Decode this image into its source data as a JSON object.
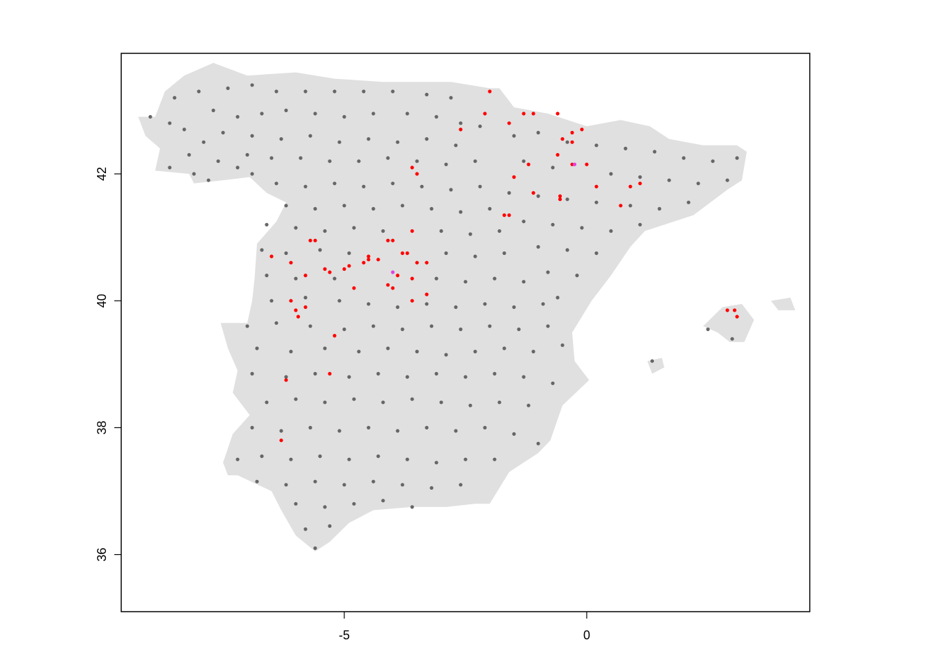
{
  "map": {
    "region": "Spain",
    "background_color": "#e0e0e0",
    "frame": "box",
    "x_axis": {
      "range": [
        -9.6,
        4.6
      ],
      "ticks": [
        {
          "value": -5,
          "label": "-5"
        },
        {
          "value": 0,
          "label": "0"
        }
      ]
    },
    "y_axis": {
      "range": [
        35.1,
        43.9
      ],
      "ticks": [
        {
          "value": 36,
          "label": "36"
        },
        {
          "value": 38,
          "label": "38"
        },
        {
          "value": 40,
          "label": "40"
        },
        {
          "value": 42,
          "label": "42"
        }
      ]
    },
    "colors": {
      "grey": "#666666",
      "red": "#ff0000",
      "violet": "#e040e0"
    },
    "land_outline": [
      [
        -8.9,
        42.9
      ],
      [
        -8.7,
        43.3
      ],
      [
        -8.3,
        43.55
      ],
      [
        -7.7,
        43.75
      ],
      [
        -7.0,
        43.55
      ],
      [
        -6.0,
        43.6
      ],
      [
        -5.2,
        43.5
      ],
      [
        -4.2,
        43.45
      ],
      [
        -3.5,
        43.45
      ],
      [
        -2.8,
        43.45
      ],
      [
        -2.0,
        43.35
      ],
      [
        -1.8,
        43.35
      ],
      [
        -1.5,
        43.05
      ],
      [
        -0.8,
        42.95
      ],
      [
        0.0,
        42.75
      ],
      [
        0.7,
        42.85
      ],
      [
        1.3,
        42.75
      ],
      [
        1.7,
        42.55
      ],
      [
        2.4,
        42.45
      ],
      [
        3.1,
        42.45
      ],
      [
        3.3,
        42.35
      ],
      [
        3.2,
        41.9
      ],
      [
        2.9,
        41.75
      ],
      [
        2.2,
        41.35
      ],
      [
        1.2,
        41.1
      ],
      [
        0.9,
        40.85
      ],
      [
        0.5,
        40.4
      ],
      [
        0.1,
        40.0
      ],
      [
        -0.3,
        39.5
      ],
      [
        -0.25,
        39.05
      ],
      [
        0.05,
        38.75
      ],
      [
        -0.5,
        38.35
      ],
      [
        -0.75,
        37.8
      ],
      [
        -1.0,
        37.6
      ],
      [
        -1.6,
        37.3
      ],
      [
        -2.0,
        36.8
      ],
      [
        -2.3,
        36.8
      ],
      [
        -2.9,
        36.75
      ],
      [
        -3.6,
        36.75
      ],
      [
        -4.4,
        36.7
      ],
      [
        -4.9,
        36.5
      ],
      [
        -5.3,
        36.2
      ],
      [
        -5.6,
        36.05
      ],
      [
        -6.0,
        36.3
      ],
      [
        -6.3,
        36.7
      ],
      [
        -6.5,
        37.0
      ],
      [
        -7.2,
        37.25
      ],
      [
        -7.4,
        37.25
      ],
      [
        -7.5,
        37.45
      ],
      [
        -7.3,
        37.9
      ],
      [
        -6.95,
        38.2
      ],
      [
        -7.3,
        38.55
      ],
      [
        -7.2,
        38.9
      ],
      [
        -7.4,
        39.25
      ],
      [
        -7.55,
        39.65
      ],
      [
        -7.0,
        39.65
      ],
      [
        -6.9,
        40.0
      ],
      [
        -6.85,
        40.35
      ],
      [
        -6.8,
        40.9
      ],
      [
        -6.4,
        41.25
      ],
      [
        -6.2,
        41.55
      ],
      [
        -6.6,
        41.7
      ],
      [
        -6.95,
        41.95
      ],
      [
        -7.5,
        41.9
      ],
      [
        -8.1,
        41.85
      ],
      [
        -8.2,
        42.0
      ],
      [
        -8.9,
        42.05
      ],
      [
        -8.8,
        42.4
      ],
      [
        -9.1,
        42.6
      ],
      [
        -9.25,
        42.9
      ]
    ],
    "islands": [
      [
        [
          2.4,
          39.6
        ],
        [
          2.8,
          39.9
        ],
        [
          3.2,
          39.95
        ],
        [
          3.45,
          39.7
        ],
        [
          3.25,
          39.35
        ],
        [
          2.95,
          39.35
        ],
        [
          2.7,
          39.5
        ]
      ],
      [
        [
          3.8,
          40.0
        ],
        [
          4.2,
          40.05
        ],
        [
          4.3,
          39.85
        ],
        [
          3.95,
          39.85
        ]
      ],
      [
        [
          1.25,
          39.05
        ],
        [
          1.55,
          39.1
        ],
        [
          1.6,
          38.95
        ],
        [
          1.35,
          38.85
        ]
      ]
    ],
    "grey_points": [
      [
        -9.0,
        42.9
      ],
      [
        -8.6,
        42.8
      ],
      [
        -8.3,
        42.7
      ],
      [
        -7.9,
        42.5
      ],
      [
        -8.2,
        42.3
      ],
      [
        -7.6,
        42.2
      ],
      [
        -7.2,
        42.1
      ],
      [
        -6.9,
        42.0
      ],
      [
        -8.6,
        42.1
      ],
      [
        -8.1,
        42.0
      ],
      [
        -7.8,
        41.9
      ],
      [
        -8.5,
        43.2
      ],
      [
        -8.0,
        43.3
      ],
      [
        -7.4,
        43.35
      ],
      [
        -6.9,
        43.4
      ],
      [
        -6.4,
        43.3
      ],
      [
        -5.8,
        43.3
      ],
      [
        -5.2,
        43.3
      ],
      [
        -4.6,
        43.3
      ],
      [
        -4.0,
        43.3
      ],
      [
        -3.3,
        43.25
      ],
      [
        -2.8,
        43.2
      ],
      [
        -7.7,
        43.0
      ],
      [
        -7.2,
        42.9
      ],
      [
        -6.7,
        42.95
      ],
      [
        -6.2,
        43.0
      ],
      [
        -5.6,
        42.95
      ],
      [
        -5.0,
        42.9
      ],
      [
        -4.4,
        42.95
      ],
      [
        -3.7,
        42.95
      ],
      [
        -3.1,
        42.9
      ],
      [
        -2.6,
        42.8
      ],
      [
        -2.2,
        42.75
      ],
      [
        -7.5,
        42.65
      ],
      [
        -6.9,
        42.6
      ],
      [
        -6.3,
        42.55
      ],
      [
        -5.7,
        42.6
      ],
      [
        -5.1,
        42.5
      ],
      [
        -4.5,
        42.55
      ],
      [
        -3.9,
        42.5
      ],
      [
        -3.3,
        42.55
      ],
      [
        -2.7,
        42.45
      ],
      [
        -7.0,
        42.3
      ],
      [
        -6.5,
        42.25
      ],
      [
        -5.9,
        42.25
      ],
      [
        -5.3,
        42.2
      ],
      [
        -4.7,
        42.2
      ],
      [
        -4.1,
        42.25
      ],
      [
        -3.5,
        42.2
      ],
      [
        -2.9,
        42.15
      ],
      [
        -2.3,
        42.2
      ],
      [
        -6.4,
        41.85
      ],
      [
        -5.8,
        41.8
      ],
      [
        -5.2,
        41.85
      ],
      [
        -4.6,
        41.8
      ],
      [
        -4.0,
        41.85
      ],
      [
        -3.4,
        41.8
      ],
      [
        -2.8,
        41.75
      ],
      [
        -2.2,
        41.8
      ],
      [
        -6.2,
        41.5
      ],
      [
        -5.6,
        41.45
      ],
      [
        -5.0,
        41.5
      ],
      [
        -4.4,
        41.45
      ],
      [
        -3.8,
        41.5
      ],
      [
        -3.2,
        41.45
      ],
      [
        -2.6,
        41.4
      ],
      [
        -2.0,
        41.45
      ],
      [
        -6.6,
        41.2
      ],
      [
        -6.0,
        41.15
      ],
      [
        -5.4,
        41.1
      ],
      [
        -4.8,
        41.15
      ],
      [
        -4.2,
        41.1
      ],
      [
        -3.0,
        41.1
      ],
      [
        -2.4,
        41.05
      ],
      [
        -1.8,
        41.1
      ],
      [
        -6.7,
        40.8
      ],
      [
        -6.2,
        40.75
      ],
      [
        -5.5,
        40.8
      ],
      [
        -4.9,
        40.75
      ],
      [
        -2.9,
        40.75
      ],
      [
        -2.3,
        40.7
      ],
      [
        -1.7,
        40.75
      ],
      [
        -6.6,
        40.4
      ],
      [
        -6.0,
        40.35
      ],
      [
        -5.2,
        40.35
      ],
      [
        -3.1,
        40.35
      ],
      [
        -2.5,
        40.3
      ],
      [
        -1.9,
        40.35
      ],
      [
        -1.3,
        40.3
      ],
      [
        -6.5,
        40.0
      ],
      [
        -5.8,
        40.05
      ],
      [
        -5.1,
        40.0
      ],
      [
        -4.5,
        39.95
      ],
      [
        -3.9,
        39.9
      ],
      [
        -3.3,
        39.95
      ],
      [
        -2.7,
        39.9
      ],
      [
        -2.1,
        39.95
      ],
      [
        -1.5,
        39.9
      ],
      [
        -0.9,
        39.95
      ],
      [
        -7.0,
        39.6
      ],
      [
        -6.4,
        39.65
      ],
      [
        -5.7,
        39.6
      ],
      [
        -5.0,
        39.55
      ],
      [
        -4.4,
        39.6
      ],
      [
        -3.8,
        39.55
      ],
      [
        -3.2,
        39.6
      ],
      [
        -2.6,
        39.55
      ],
      [
        -2.0,
        39.6
      ],
      [
        -1.4,
        39.55
      ],
      [
        -0.8,
        39.6
      ],
      [
        -6.8,
        39.25
      ],
      [
        -6.1,
        39.2
      ],
      [
        -5.4,
        39.25
      ],
      [
        -4.7,
        39.2
      ],
      [
        -4.1,
        39.25
      ],
      [
        -3.5,
        39.2
      ],
      [
        -2.9,
        39.15
      ],
      [
        -2.3,
        39.2
      ],
      [
        -1.7,
        39.25
      ],
      [
        -1.1,
        39.2
      ],
      [
        -0.5,
        39.3
      ],
      [
        -6.9,
        38.85
      ],
      [
        -6.2,
        38.8
      ],
      [
        -5.6,
        38.85
      ],
      [
        -4.9,
        38.8
      ],
      [
        -4.3,
        38.85
      ],
      [
        -3.7,
        38.8
      ],
      [
        -3.1,
        38.85
      ],
      [
        -2.5,
        38.8
      ],
      [
        -1.9,
        38.85
      ],
      [
        -1.3,
        38.8
      ],
      [
        -0.7,
        38.7
      ],
      [
        -6.6,
        38.4
      ],
      [
        -6.0,
        38.45
      ],
      [
        -5.4,
        38.4
      ],
      [
        -4.8,
        38.45
      ],
      [
        -4.2,
        38.4
      ],
      [
        -3.6,
        38.45
      ],
      [
        -3.0,
        38.4
      ],
      [
        -2.4,
        38.35
      ],
      [
        -1.8,
        38.4
      ],
      [
        -1.2,
        38.35
      ],
      [
        -6.9,
        38.0
      ],
      [
        -6.3,
        37.95
      ],
      [
        -5.7,
        38.0
      ],
      [
        -5.1,
        37.95
      ],
      [
        -4.5,
        38.0
      ],
      [
        -3.9,
        37.95
      ],
      [
        -3.3,
        38.0
      ],
      [
        -2.7,
        37.95
      ],
      [
        -2.1,
        38.0
      ],
      [
        -1.5,
        37.9
      ],
      [
        -1.0,
        37.75
      ],
      [
        -7.2,
        37.5
      ],
      [
        -6.7,
        37.55
      ],
      [
        -6.1,
        37.5
      ],
      [
        -5.5,
        37.55
      ],
      [
        -4.9,
        37.5
      ],
      [
        -4.3,
        37.55
      ],
      [
        -3.7,
        37.5
      ],
      [
        -3.1,
        37.45
      ],
      [
        -2.5,
        37.5
      ],
      [
        -1.9,
        37.5
      ],
      [
        -6.8,
        37.15
      ],
      [
        -6.2,
        37.1
      ],
      [
        -5.6,
        37.15
      ],
      [
        -5.0,
        37.1
      ],
      [
        -4.4,
        37.15
      ],
      [
        -3.8,
        37.1
      ],
      [
        -3.2,
        37.05
      ],
      [
        -2.6,
        37.1
      ],
      [
        -6.0,
        36.8
      ],
      [
        -5.4,
        36.75
      ],
      [
        -4.8,
        36.8
      ],
      [
        -4.2,
        36.85
      ],
      [
        -3.6,
        36.75
      ],
      [
        -5.8,
        36.4
      ],
      [
        -5.3,
        36.45
      ],
      [
        -5.6,
        36.1
      ],
      [
        -1.5,
        42.6
      ],
      [
        -1.0,
        42.65
      ],
      [
        -0.4,
        42.5
      ],
      [
        0.2,
        42.45
      ],
      [
        0.8,
        42.4
      ],
      [
        1.4,
        42.35
      ],
      [
        2.0,
        42.25
      ],
      [
        2.6,
        42.2
      ],
      [
        3.1,
        42.25
      ],
      [
        -1.3,
        42.2
      ],
      [
        -0.7,
        42.1
      ],
      [
        0.5,
        42.0
      ],
      [
        1.1,
        41.95
      ],
      [
        1.7,
        41.9
      ],
      [
        2.3,
        41.85
      ],
      [
        2.9,
        41.9
      ],
      [
        -1.6,
        41.7
      ],
      [
        -1.0,
        41.65
      ],
      [
        -0.4,
        41.6
      ],
      [
        0.2,
        41.55
      ],
      [
        0.9,
        41.5
      ],
      [
        1.5,
        41.45
      ],
      [
        2.1,
        41.55
      ],
      [
        -1.3,
        41.25
      ],
      [
        -0.7,
        41.2
      ],
      [
        -0.1,
        41.15
      ],
      [
        0.5,
        41.1
      ],
      [
        1.1,
        41.2
      ],
      [
        -1.0,
        40.85
      ],
      [
        -0.4,
        40.8
      ],
      [
        0.2,
        40.75
      ],
      [
        -0.8,
        40.45
      ],
      [
        -0.2,
        40.4
      ],
      [
        -0.6,
        40.05
      ],
      [
        2.5,
        39.55
      ],
      [
        3.0,
        39.4
      ],
      [
        1.35,
        39.05
      ]
    ],
    "red_points": [
      [
        -2.0,
        43.3
      ],
      [
        -1.3,
        42.95
      ],
      [
        -1.6,
        42.8
      ],
      [
        -1.1,
        42.95
      ],
      [
        -0.6,
        42.95
      ],
      [
        -0.3,
        42.65
      ],
      [
        -0.1,
        42.7
      ],
      [
        -0.3,
        42.5
      ],
      [
        -0.5,
        42.55
      ],
      [
        -2.1,
        42.95
      ],
      [
        -2.6,
        42.7
      ],
      [
        -3.6,
        42.1
      ],
      [
        -3.5,
        42.0
      ],
      [
        -1.5,
        41.95
      ],
      [
        -1.2,
        42.15
      ],
      [
        -0.6,
        42.3
      ],
      [
        0.0,
        42.15
      ],
      [
        -0.3,
        42.15
      ],
      [
        0.2,
        41.8
      ],
      [
        0.9,
        41.8
      ],
      [
        1.1,
        41.85
      ],
      [
        -1.1,
        41.7
      ],
      [
        -0.55,
        41.65
      ],
      [
        -0.55,
        41.6
      ],
      [
        0.7,
        41.5
      ],
      [
        -1.7,
        41.35
      ],
      [
        -1.6,
        41.35
      ],
      [
        -3.6,
        41.1
      ],
      [
        -4.1,
        40.95
      ],
      [
        -4.0,
        40.95
      ],
      [
        -3.8,
        40.75
      ],
      [
        -3.7,
        40.75
      ],
      [
        -3.5,
        40.6
      ],
      [
        -3.3,
        40.6
      ],
      [
        -4.3,
        40.65
      ],
      [
        -4.5,
        40.7
      ],
      [
        -4.5,
        40.65
      ],
      [
        -4.6,
        40.6
      ],
      [
        -4.9,
        40.55
      ],
      [
        -5.3,
        40.45
      ],
      [
        -5.4,
        40.5
      ],
      [
        -5.8,
        40.4
      ],
      [
        -6.1,
        40.6
      ],
      [
        -6.5,
        40.7
      ],
      [
        -5.7,
        40.95
      ],
      [
        -5.6,
        40.95
      ],
      [
        -5.0,
        40.5
      ],
      [
        -4.8,
        40.2
      ],
      [
        -4.1,
        40.25
      ],
      [
        -4.0,
        40.2
      ],
      [
        -3.9,
        40.4
      ],
      [
        -3.6,
        40.35
      ],
      [
        -3.3,
        40.1
      ],
      [
        -3.6,
        40.0
      ],
      [
        -6.1,
        40.0
      ],
      [
        -6.0,
        39.85
      ],
      [
        -5.8,
        39.9
      ],
      [
        -5.95,
        39.75
      ],
      [
        -5.2,
        39.45
      ],
      [
        -5.3,
        38.85
      ],
      [
        -6.2,
        38.75
      ],
      [
        -6.3,
        37.8
      ],
      [
        2.9,
        39.85
      ],
      [
        3.05,
        39.85
      ],
      [
        3.1,
        39.75
      ]
    ],
    "violet_points": [
      [
        -4.0,
        40.45
      ],
      [
        -0.25,
        42.15
      ]
    ]
  }
}
